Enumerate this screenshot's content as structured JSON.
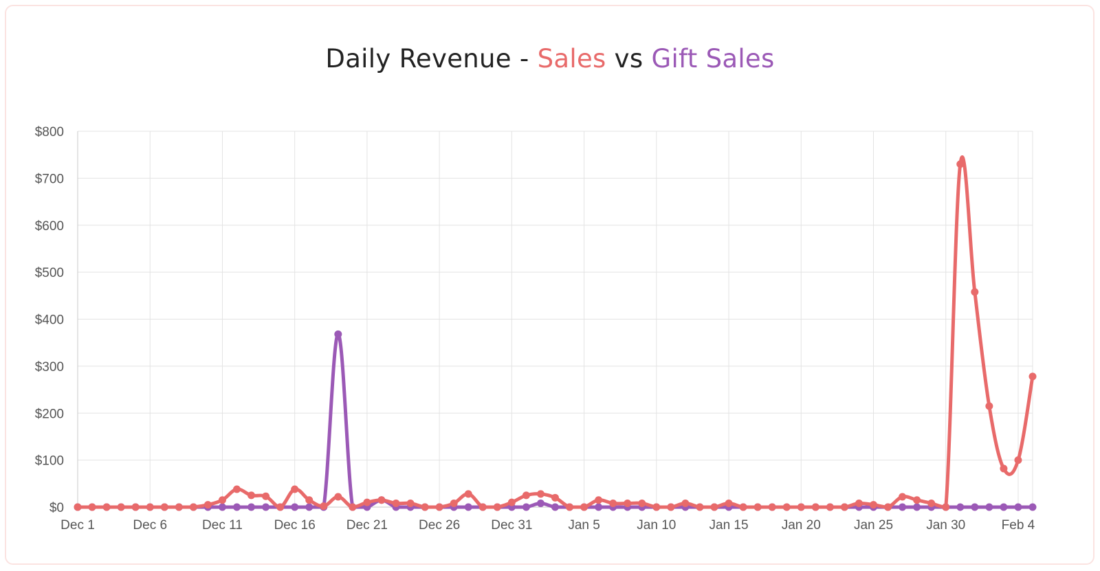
{
  "title": {
    "prefix": "Daily Revenue - ",
    "series1": "Sales",
    "middle": " vs ",
    "series2": "Gift Sales"
  },
  "colors": {
    "sales": "#e86a6a",
    "gift_sales": "#9b59b6",
    "grid": "#e3e3e3",
    "axis": "#c8c8c8"
  },
  "chart_data": {
    "type": "line",
    "title": "Daily Revenue - Sales vs Gift Sales",
    "ylim": [
      0,
      800
    ],
    "y_ticks": [
      "$0",
      "$100",
      "$200",
      "$300",
      "$400",
      "$500",
      "$600",
      "$700",
      "$800"
    ],
    "x_tick_labels": [
      "Dec 1",
      "Dec 6",
      "Dec 11",
      "Dec 16",
      "Dec 21",
      "Dec 26",
      "Dec 31",
      "Jan 5",
      "Jan 10",
      "Jan 15",
      "Jan 20",
      "Jan 25",
      "Jan 30",
      "Feb 4"
    ],
    "x_tick_every_n_days": 5,
    "grid": true,
    "smooth": true,
    "series": [
      {
        "name": "Sales",
        "color": "#e86a6a",
        "values": [
          0,
          0,
          0,
          0,
          0,
          0,
          0,
          0,
          0,
          5,
          15,
          38,
          25,
          23,
          0,
          38,
          15,
          2,
          22,
          0,
          10,
          15,
          8,
          8,
          0,
          0,
          8,
          28,
          0,
          0,
          10,
          25,
          28,
          20,
          0,
          0,
          15,
          8,
          8,
          8,
          0,
          0,
          8,
          0,
          0,
          8,
          0,
          0,
          0,
          0,
          0,
          0,
          0,
          0,
          8,
          5,
          0,
          22,
          15,
          8,
          0,
          730,
          458,
          215,
          82,
          100,
          278
        ]
      },
      {
        "name": "Gift Sales",
        "color": "#9b59b6",
        "values": [
          0,
          0,
          0,
          0,
          0,
          0,
          0,
          0,
          0,
          0,
          0,
          0,
          0,
          0,
          0,
          0,
          0,
          0,
          368,
          0,
          0,
          15,
          0,
          0,
          0,
          0,
          0,
          0,
          0,
          0,
          0,
          0,
          8,
          0,
          0,
          0,
          0,
          0,
          0,
          0,
          0,
          0,
          0,
          0,
          0,
          0,
          0,
          0,
          0,
          0,
          0,
          0,
          0,
          0,
          0,
          0,
          0,
          0,
          0,
          0,
          0,
          0,
          0,
          0,
          0,
          0,
          0
        ]
      }
    ]
  }
}
